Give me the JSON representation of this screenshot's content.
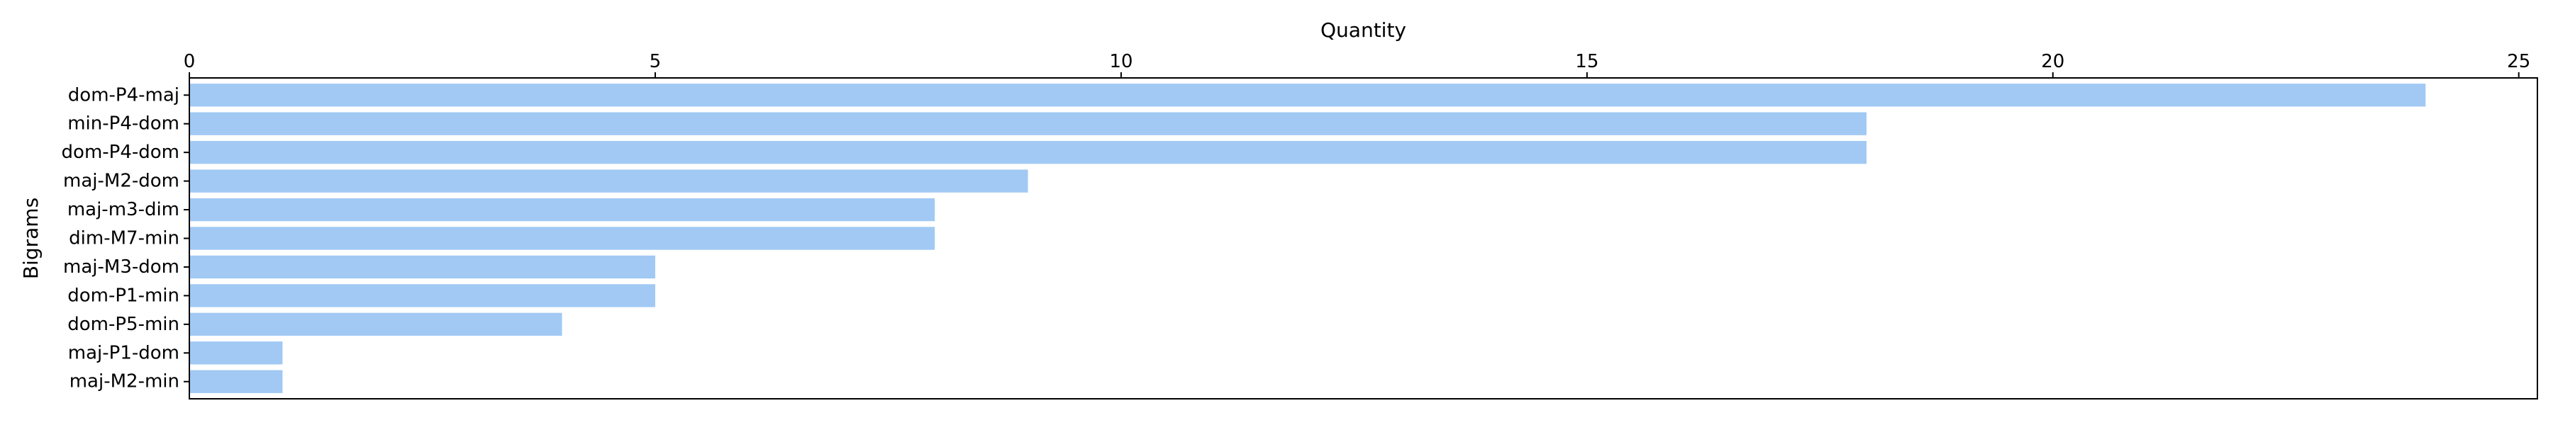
{
  "chart_data": {
    "type": "bar",
    "orientation": "horizontal",
    "categories": [
      "dom-P4-maj",
      "min-P4-dom",
      "dom-P4-dom",
      "maj-M2-dom",
      "maj-m3-dim",
      "dim-M7-min",
      "maj-M3-dom",
      "dom-P1-min",
      "dom-P5-min",
      "maj-P1-dom",
      "maj-M2-min"
    ],
    "values": [
      24,
      18,
      18,
      9,
      8,
      8,
      5,
      5,
      4,
      1,
      1
    ],
    "title": "",
    "xlabel": "Quantity",
    "ylabel": "Bigrams",
    "xlim": [
      0,
      25.2
    ],
    "x_ticks": [
      0,
      5,
      10,
      15,
      20,
      25
    ],
    "x_axis_position": "top",
    "grid": false,
    "legend": "none",
    "bar_color": "#a1c9f4"
  }
}
